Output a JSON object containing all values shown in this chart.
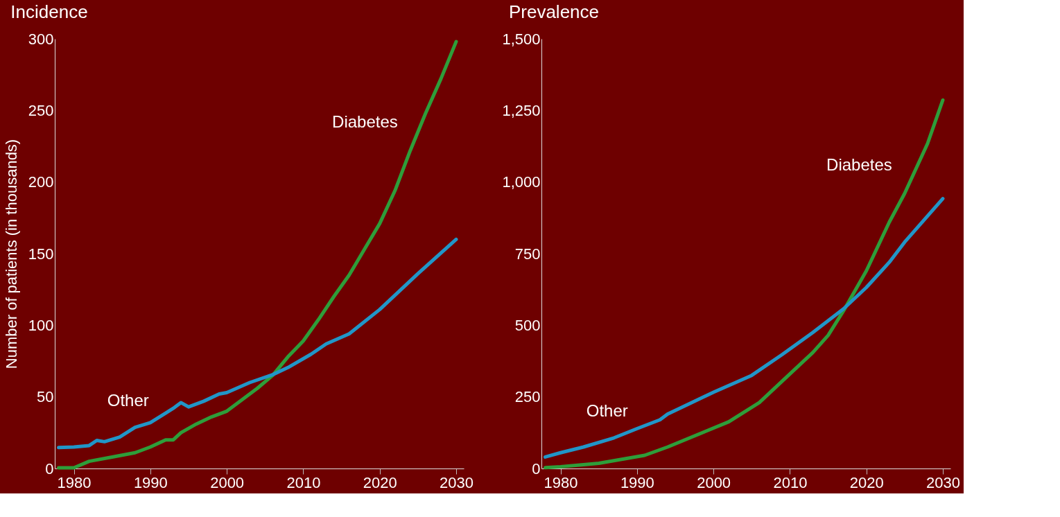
{
  "chart_data": [
    {
      "type": "line",
      "title": "Incidence",
      "ylabel": "Number of patients (in thousands)",
      "xlim": [
        1977.5,
        2031
      ],
      "xticks": [
        1980,
        1990,
        2000,
        2010,
        2020,
        2030
      ],
      "ylim": [
        0,
        300
      ],
      "yticks": [
        0,
        50,
        100,
        150,
        200,
        250,
        300
      ],
      "grid": false,
      "marker": "none",
      "line_style": "solid",
      "series": [
        {
          "name": "Diabetes",
          "color": "#2e9e3a",
          "x": [
            1978,
            1980,
            1982,
            1985,
            1988,
            1990,
            1992,
            1993,
            1994,
            1996,
            1998,
            2000,
            2002,
            2004,
            2006,
            2008,
            2010,
            2012,
            2014,
            2016,
            2018,
            2020,
            2022,
            2024,
            2026,
            2028,
            2030
          ],
          "values": [
            0.5,
            0.5,
            5,
            8,
            11,
            15,
            20,
            20,
            25,
            31,
            36,
            40,
            48,
            56,
            65,
            78,
            89,
            104,
            120,
            135,
            153,
            171,
            194,
            222,
            248,
            272,
            298
          ]
        },
        {
          "name": "Other",
          "color": "#2196c8",
          "x": [
            1978,
            1980,
            1982,
            1983,
            1984,
            1986,
            1988,
            1990,
            1992,
            1993,
            1994,
            1995,
            1997,
            1999,
            2000,
            2003,
            2006,
            2008,
            2011,
            2013,
            2016,
            2020,
            2025,
            2030
          ],
          "values": [
            14.6,
            15,
            16,
            19.6,
            18.7,
            22,
            28.7,
            32,
            38.7,
            42,
            46,
            43,
            47,
            52,
            53,
            60,
            65.5,
            70.5,
            79.7,
            87,
            94,
            111,
            136,
            160
          ]
        }
      ]
    },
    {
      "type": "line",
      "title": "Prevalence",
      "xlim": [
        1977.5,
        2031
      ],
      "xticks": [
        1980,
        1990,
        2000,
        2010,
        2020,
        2030
      ],
      "ylim": [
        0,
        1500
      ],
      "yticks": [
        0,
        250,
        500,
        750,
        {
          "value": 1000,
          "label": "1,000"
        },
        {
          "value": 1250,
          "label": "1,250"
        },
        {
          "value": 1500,
          "label": "1,500"
        }
      ],
      "grid": false,
      "marker": "none",
      "line_style": "solid",
      "series": [
        {
          "name": "Diabetes",
          "color": "#2e9e3a",
          "x": [
            1978,
            1980,
            1985,
            1991,
            1994,
            1999,
            2002,
            2006,
            2009,
            2013,
            2015,
            2017,
            2020,
            2023,
            2025,
            2028,
            2030
          ],
          "values": [
            3,
            6,
            18,
            46,
            75,
            130,
            163,
            230,
            305,
            405,
            465,
            550,
            690,
            860,
            960,
            1134,
            1286
          ]
        },
        {
          "name": "Other",
          "color": "#2196c8",
          "x": [
            1978,
            1980,
            1983,
            1987,
            1990,
            1993,
            1994,
            1997,
            2000,
            2005,
            2009,
            2013,
            2017,
            2020,
            2023,
            2025,
            2030
          ],
          "values": [
            40,
            55,
            75,
            107,
            139,
            170,
            190,
            228,
            266,
            325,
            398,
            475,
            557,
            632,
            720,
            790,
            942
          ]
        }
      ]
    }
  ]
}
